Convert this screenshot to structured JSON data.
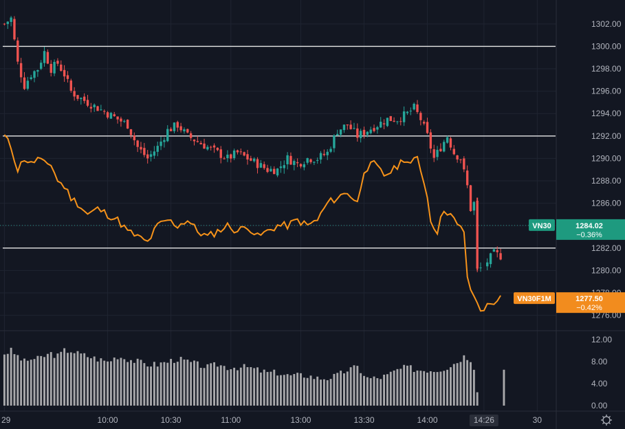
{
  "chart_data": {
    "type": "candlestick",
    "price_axis": {
      "min": 1275.3,
      "max": 1303.4,
      "ticks": [
        1276,
        1278,
        1280,
        1282,
        1284,
        1286,
        1288,
        1290,
        1292,
        1294,
        1296,
        1298,
        1300,
        1302
      ],
      "labels": [
        "1276.00",
        "1278.00",
        "1280.00",
        "1282.00",
        "1284.00",
        "1286.00",
        "1288.00",
        "1290.00",
        "1292.00",
        "1294.00",
        "1296.00",
        "1298.00",
        "1300.00",
        "1302.00"
      ]
    },
    "volume_axis": {
      "min": 0,
      "max": 12.5,
      "ticks": [
        0,
        4,
        8,
        12
      ],
      "labels": [
        "0.00",
        "4.00",
        "8.00",
        "12.00"
      ]
    },
    "time_axis": {
      "labels": [
        "29",
        "10:00",
        "10:30",
        "11:00",
        "13:00",
        "13:30",
        "14:00",
        "14:26",
        "30"
      ],
      "bar_index": [
        0,
        31,
        50,
        68,
        89,
        108,
        127,
        144,
        160
      ],
      "total_bars": 166
    },
    "horizontal_lines": [
      1300,
      1292,
      1282
    ],
    "last_price_dotted": 1284.02,
    "series": [
      {
        "name": "VN30",
        "kind": "candles",
        "up_color": "#26a69a",
        "down_color": "#ef5350",
        "last_value": "1284.02",
        "change": "−0.36%",
        "tag_color": "#1e9a7f",
        "key_closes": [
          [
            0,
            1302.0
          ],
          [
            2,
            1302.5
          ],
          [
            4,
            1298.5
          ],
          [
            6,
            1296.5
          ],
          [
            8,
            1297.5
          ],
          [
            10,
            1298.0
          ],
          [
            12,
            1299.5
          ],
          [
            14,
            1298.0
          ],
          [
            16,
            1298.5
          ],
          [
            18,
            1297.5
          ],
          [
            20,
            1296.0
          ],
          [
            22,
            1295.5
          ],
          [
            25,
            1295.0
          ],
          [
            28,
            1294.5
          ],
          [
            31,
            1294.0
          ],
          [
            34,
            1293.5
          ],
          [
            37,
            1293.0
          ],
          [
            40,
            1291.0
          ],
          [
            43,
            1290.0
          ],
          [
            46,
            1291.0
          ],
          [
            49,
            1292.5
          ],
          [
            52,
            1293.0
          ],
          [
            55,
            1292.0
          ],
          [
            58,
            1291.5
          ],
          [
            61,
            1291.0
          ],
          [
            64,
            1290.5
          ],
          [
            67,
            1290.0
          ],
          [
            70,
            1290.5
          ],
          [
            73,
            1290.0
          ],
          [
            76,
            1289.5
          ],
          [
            79,
            1289.0
          ],
          [
            82,
            1289.0
          ],
          [
            85,
            1290.0
          ],
          [
            88,
            1289.5
          ],
          [
            91,
            1290.0
          ],
          [
            94,
            1290.0
          ],
          [
            97,
            1290.5
          ],
          [
            100,
            1292.5
          ],
          [
            103,
            1293.0
          ],
          [
            106,
            1292.0
          ],
          [
            109,
            1292.5
          ],
          [
            112,
            1293.0
          ],
          [
            115,
            1293.5
          ],
          [
            118,
            1293.5
          ],
          [
            121,
            1294.0
          ],
          [
            123,
            1294.5
          ],
          [
            125,
            1293.5
          ],
          [
            127,
            1292.0
          ],
          [
            129,
            1290.0
          ],
          [
            131,
            1291.0
          ],
          [
            133,
            1292.0
          ],
          [
            135,
            1290.5
          ],
          [
            137,
            1290.0
          ],
          [
            139,
            1287.5
          ],
          [
            140,
            1285.5
          ],
          [
            141,
            1286.0
          ],
          [
            142,
            1280.0
          ],
          [
            143,
            1280.2
          ],
          [
            145,
            1280.8
          ],
          [
            147,
            1281.5
          ],
          [
            149,
            1281.3
          ]
        ]
      },
      {
        "name": "VN30F1M",
        "kind": "line",
        "color": "#f7931a",
        "last_value": "1277.50",
        "change": "−0.42%",
        "tag_color": "#f28c1e",
        "key_values": [
          [
            0,
            1292.0
          ],
          [
            2,
            1291.0
          ],
          [
            4,
            1289.0
          ],
          [
            6,
            1290.0
          ],
          [
            8,
            1289.5
          ],
          [
            10,
            1290.0
          ],
          [
            12,
            1289.5
          ],
          [
            14,
            1289.5
          ],
          [
            16,
            1288.0
          ],
          [
            18,
            1287.5
          ],
          [
            20,
            1286.5
          ],
          [
            22,
            1286.0
          ],
          [
            25,
            1285.0
          ],
          [
            28,
            1285.5
          ],
          [
            31,
            1285.0
          ],
          [
            34,
            1284.5
          ],
          [
            37,
            1283.5
          ],
          [
            40,
            1283.0
          ],
          [
            43,
            1282.5
          ],
          [
            46,
            1284.0
          ],
          [
            49,
            1284.5
          ],
          [
            52,
            1284.0
          ],
          [
            55,
            1284.5
          ],
          [
            58,
            1283.5
          ],
          [
            61,
            1283.0
          ],
          [
            64,
            1283.5
          ],
          [
            67,
            1284.0
          ],
          [
            70,
            1283.5
          ],
          [
            73,
            1284.0
          ],
          [
            76,
            1283.0
          ],
          [
            79,
            1283.5
          ],
          [
            82,
            1284.0
          ],
          [
            85,
            1284.0
          ],
          [
            88,
            1284.5
          ],
          [
            91,
            1284.0
          ],
          [
            94,
            1284.5
          ],
          [
            97,
            1286.0
          ],
          [
            100,
            1286.5
          ],
          [
            103,
            1287.0
          ],
          [
            106,
            1286.0
          ],
          [
            108,
            1289.0
          ],
          [
            111,
            1289.5
          ],
          [
            114,
            1288.5
          ],
          [
            117,
            1289.0
          ],
          [
            120,
            1290.0
          ],
          [
            122,
            1289.5
          ],
          [
            124,
            1290.0
          ],
          [
            126,
            1288.0
          ],
          [
            127,
            1286.5
          ],
          [
            128,
            1284.5
          ],
          [
            130,
            1283.5
          ],
          [
            132,
            1285.5
          ],
          [
            134,
            1285.0
          ],
          [
            136,
            1284.0
          ],
          [
            138,
            1283.5
          ],
          [
            139,
            1279.5
          ],
          [
            140,
            1278.0
          ],
          [
            141,
            1277.8
          ],
          [
            142,
            1277.0
          ],
          [
            143,
            1276.5
          ],
          [
            145,
            1276.8
          ],
          [
            147,
            1277.2
          ],
          [
            149,
            1277.5
          ]
        ]
      },
      {
        "name": "Volume",
        "kind": "bars",
        "color": "#a8a8ab",
        "key_values": [
          [
            0,
            9.5
          ],
          [
            2,
            10.0
          ],
          [
            4,
            9.0
          ],
          [
            6,
            8.0
          ],
          [
            8,
            8.5
          ],
          [
            10,
            8.5
          ],
          [
            12,
            9.0
          ],
          [
            14,
            9.5
          ],
          [
            16,
            9.0
          ],
          [
            18,
            10.0
          ],
          [
            20,
            10.0
          ],
          [
            22,
            9.5
          ],
          [
            25,
            9.0
          ],
          [
            28,
            8.5
          ],
          [
            31,
            8.0
          ],
          [
            34,
            9.0
          ],
          [
            37,
            8.5
          ],
          [
            40,
            8.0
          ],
          [
            43,
            7.5
          ],
          [
            46,
            7.5
          ],
          [
            49,
            8.0
          ],
          [
            52,
            8.5
          ],
          [
            55,
            8.0
          ],
          [
            58,
            7.5
          ],
          [
            61,
            7.0
          ],
          [
            64,
            7.5
          ],
          [
            67,
            7.0
          ],
          [
            70,
            7.0
          ],
          [
            73,
            7.0
          ],
          [
            76,
            6.5
          ],
          [
            79,
            6.0
          ],
          [
            82,
            6.0
          ],
          [
            85,
            5.5
          ],
          [
            88,
            5.5
          ],
          [
            91,
            5.5
          ],
          [
            94,
            5.0
          ],
          [
            97,
            5.0
          ],
          [
            100,
            5.5
          ],
          [
            103,
            6.5
          ],
          [
            106,
            7.0
          ],
          [
            109,
            5.0
          ],
          [
            112,
            5.0
          ],
          [
            115,
            5.5
          ],
          [
            118,
            6.5
          ],
          [
            121,
            7.0
          ],
          [
            124,
            6.5
          ],
          [
            127,
            6.5
          ],
          [
            130,
            6.5
          ],
          [
            133,
            7.0
          ],
          [
            136,
            8.0
          ],
          [
            138,
            9.0
          ],
          [
            140,
            8.5
          ],
          [
            141,
            7.0
          ],
          [
            142,
            3.0
          ],
          [
            143,
            0
          ],
          [
            149,
            0
          ],
          [
            150,
            6.5
          ],
          [
            151,
            0
          ]
        ]
      }
    ]
  }
}
